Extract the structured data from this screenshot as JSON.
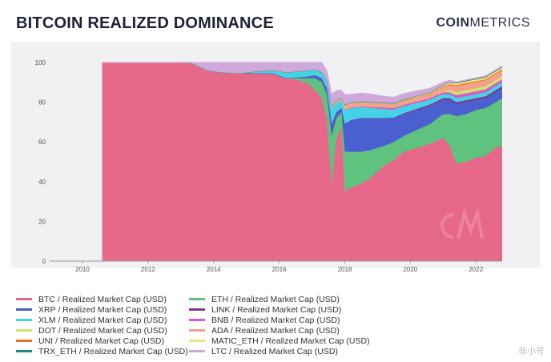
{
  "header": {
    "title": "BITCOIN REALIZED DOMINANCE",
    "brand_bold": "COIN",
    "brand_light": "METRICS"
  },
  "watermark": "非小号",
  "chart_data": {
    "type": "area",
    "stacked": true,
    "xlabel": "",
    "ylabel": "",
    "xlim": [
      2009.0,
      2022.8
    ],
    "ylim": [
      0,
      100
    ],
    "x_ticks": [
      "2010",
      "2012",
      "2014",
      "2016",
      "2018",
      "2020",
      "2022"
    ],
    "y_ticks": [
      "0",
      "20",
      "40",
      "60",
      "80",
      "100"
    ],
    "grid": false,
    "legend_position": "bottom",
    "x": [
      2010.6,
      2013.0,
      2013.3,
      2013.8,
      2014.2,
      2014.8,
      2015.3,
      2015.8,
      2016.2,
      2016.6,
      2016.9,
      2017.1,
      2017.3,
      2017.45,
      2017.6,
      2017.75,
      2017.9,
      2018.0,
      2018.2,
      2018.5,
      2018.8,
      2019.2,
      2019.5,
      2019.8,
      2020.2,
      2020.6,
      2021.0,
      2021.2,
      2021.4,
      2021.7,
      2022.0,
      2022.3,
      2022.6,
      2022.8
    ],
    "series": [
      {
        "name": "BTC / Realized Market Cap (USD)",
        "color": "#e8688a",
        "values": [
          100,
          100,
          99.8,
          96,
          95,
          94.5,
          94.5,
          94.5,
          92,
          91,
          89,
          86,
          82,
          72,
          38,
          62,
          67,
          35,
          37,
          39,
          42,
          48,
          51,
          55,
          57,
          59,
          62,
          58,
          49,
          50,
          52,
          53,
          57,
          58
        ]
      },
      {
        "name": "ETH / Realized Market Cap (USD)",
        "color": "#5fc27e",
        "values": [
          0,
          0,
          0,
          0,
          0,
          0,
          0,
          0,
          0,
          1,
          3,
          6,
          8,
          12,
          25,
          10,
          8,
          20,
          18,
          16,
          14,
          10,
          9,
          8,
          9,
          10,
          12,
          16,
          24,
          24,
          24,
          24,
          23,
          24
        ]
      },
      {
        "name": "XRP / Realized Market Cap (USD)",
        "color": "#4a5fd0",
        "values": [
          0,
          0,
          0,
          0,
          0,
          0,
          0,
          0,
          0,
          0.5,
          1,
          1.5,
          2,
          3,
          6,
          3,
          2,
          14,
          16,
          17,
          16,
          14,
          12,
          11,
          10,
          9,
          7,
          7,
          6,
          6,
          5,
          5,
          5,
          5
        ]
      },
      {
        "name": "LINK / Realized Market Cap (USD)",
        "color": "#7d3a8c",
        "values": [
          0,
          0,
          0,
          0,
          0,
          0,
          0,
          0,
          0,
          0,
          0,
          0,
          0,
          0,
          0,
          0,
          0,
          0,
          0,
          0,
          0,
          0,
          0.2,
          0.4,
          0.6,
          0.8,
          1,
          1,
          1,
          1,
          1,
          1,
          1,
          1
        ]
      },
      {
        "name": "XLM / Realized Market Cap (USD)",
        "color": "#44d2e6",
        "values": [
          0,
          0,
          0,
          0,
          0,
          0,
          1,
          1.5,
          3,
          3,
          3,
          3,
          3,
          4,
          8,
          5,
          4,
          7,
          6,
          5.5,
          5,
          4.5,
          4,
          3.5,
          3,
          2.5,
          2,
          2,
          2,
          2,
          2,
          2,
          2,
          2
        ]
      },
      {
        "name": "BNB / Realized Market Cap (USD)",
        "color": "#d85bc8",
        "values": [
          0,
          0,
          0,
          0,
          0,
          0,
          0,
          0,
          0,
          0,
          0,
          0,
          0,
          0,
          0,
          0,
          0,
          0.5,
          0.5,
          0.6,
          0.8,
          1,
          1,
          1,
          1,
          1,
          1,
          1,
          1.5,
          1.5,
          1.5,
          1.5,
          1.5,
          1.5
        ]
      },
      {
        "name": "DOT / Realized Market Cap (USD)",
        "color": "#c9e86e",
        "values": [
          0,
          0,
          0,
          0,
          0,
          0,
          0,
          0,
          0,
          0,
          0,
          0,
          0,
          0,
          0,
          0,
          0,
          0,
          0,
          0,
          0,
          0,
          0,
          0,
          0,
          0,
          0.5,
          1,
          1.5,
          1.5,
          1.5,
          1.5,
          1.5,
          1.5
        ]
      },
      {
        "name": "ADA / Realized Market Cap (USD)",
        "color": "#f4a08a",
        "values": [
          0,
          0,
          0,
          0,
          0,
          0,
          0,
          0,
          0,
          0,
          0,
          0,
          0,
          0,
          1,
          1,
          1,
          2,
          2,
          2,
          2,
          2,
          2,
          2,
          2,
          2,
          2,
          2.5,
          3,
          3,
          3,
          3,
          3,
          3
        ]
      },
      {
        "name": "UNI / Realized Market Cap (USD)",
        "color": "#e8742c",
        "values": [
          0,
          0,
          0,
          0,
          0,
          0,
          0,
          0,
          0,
          0,
          0,
          0,
          0,
          0,
          0,
          0,
          0,
          0,
          0,
          0,
          0,
          0,
          0,
          0,
          0,
          0,
          0.3,
          0.5,
          0.5,
          0.5,
          0.5,
          0.5,
          0.5,
          0.5
        ]
      },
      {
        "name": "MATIC_ETH / Realized Market Cap (USD)",
        "color": "#f2e27a",
        "values": [
          0,
          0,
          0,
          0,
          0,
          0,
          0,
          0,
          0,
          0,
          0,
          0,
          0,
          0,
          0,
          0,
          0,
          0,
          0,
          0,
          0,
          0,
          0,
          0.2,
          0.3,
          0.4,
          0.5,
          0.8,
          1,
          1,
          1,
          1,
          1,
          1
        ]
      },
      {
        "name": "TRX_ETH / Realized Market Cap (USD)",
        "color": "#1f8a7c",
        "values": [
          0,
          0,
          0,
          0,
          0,
          0,
          0,
          0,
          0,
          0,
          0,
          0,
          0,
          0,
          0,
          0,
          0,
          0.3,
          0.3,
          0.3,
          0.3,
          0.3,
          0.3,
          0.3,
          0.3,
          0.3,
          0.3,
          0.3,
          0.3,
          0.3,
          0.3,
          0.3,
          0.3,
          0.3
        ]
      },
      {
        "name": "LTC / Realized Market Cap (USD)",
        "color": "#cfa8dc",
        "values": [
          0,
          0,
          0.2,
          4,
          5,
          5.5,
          4.5,
          4,
          5,
          4.5,
          4,
          3.5,
          5,
          5,
          6,
          5,
          4,
          5,
          4.2,
          4.2,
          4,
          3.2,
          3,
          3,
          2.5,
          2,
          1.5,
          1,
          0.5,
          0.5,
          0.5,
          0.5,
          0.5,
          0.5
        ]
      }
    ]
  },
  "legend_order": [
    0,
    1,
    2,
    3,
    4,
    5,
    6,
    7,
    8,
    9,
    10,
    11
  ]
}
